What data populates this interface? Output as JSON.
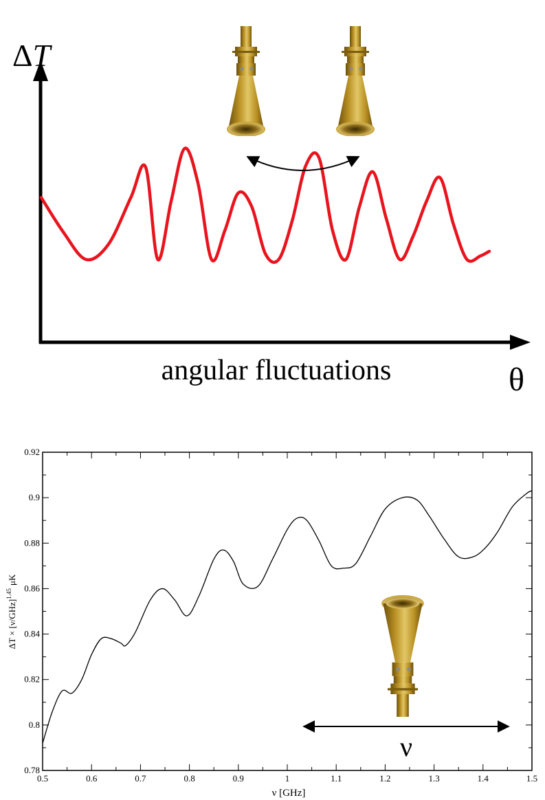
{
  "colors": {
    "curve_top": "#e8141e",
    "axis": "#000000",
    "brass_light": "#e2c766",
    "brass_mid": "#b88f22",
    "brass_dark": "#6a4f0c"
  },
  "icons": {
    "horn": "feed-horn-icon",
    "arrow": "double-arrow-icon"
  },
  "top_panel": {
    "y_label_delta": "Δ",
    "y_label_var": "T",
    "x_symbol": "θ",
    "caption": "angular fluctuations"
  },
  "chart_data": [
    {
      "type": "line",
      "title": "",
      "xlabel": "θ",
      "ylabel": "ΔT",
      "axes_ticks": false,
      "series": [
        {
          "color": "#e8141e",
          "x": [
            0.0,
            0.05,
            0.1,
            0.15,
            0.2,
            0.233,
            0.26,
            0.29,
            0.32,
            0.35,
            0.38,
            0.41,
            0.44,
            0.47,
            0.5,
            0.53,
            0.56,
            0.59,
            0.62,
            0.65,
            0.68,
            0.71,
            0.74,
            0.77,
            0.8,
            0.83,
            0.86,
            0.89,
            0.92,
            0.95,
            0.98,
            1.0
          ],
          "y": [
            0.58,
            0.28,
            0.05,
            0.18,
            0.58,
            0.84,
            0.05,
            0.55,
            1.0,
            0.7,
            0.05,
            0.3,
            0.62,
            0.5,
            0.1,
            0.05,
            0.38,
            0.85,
            0.92,
            0.3,
            0.05,
            0.5,
            0.8,
            0.4,
            0.05,
            0.25,
            0.55,
            0.75,
            0.35,
            0.05,
            0.08,
            0.12
          ]
        }
      ],
      "annotations": []
    },
    {
      "type": "line",
      "title": "",
      "xlabel": "ν  [GHz]",
      "ylabel_parts": {
        "main": "ΔT × [ν/GHz]",
        "exponent": "1.45",
        "unit": "μK"
      },
      "xlim": [
        0.5,
        1.5
      ],
      "ylim": [
        0.78,
        0.92
      ],
      "x_ticks": [
        "0.5",
        "0.6",
        "0.7",
        "0.8",
        "0.9",
        "1",
        "1.1",
        "1.2",
        "1.3",
        "1.4",
        "1.5"
      ],
      "y_ticks": [
        "0.78",
        "0.8",
        "0.82",
        "0.84",
        "0.86",
        "0.88",
        "0.9",
        "0.92"
      ],
      "annotations": [
        {
          "text": "ν"
        }
      ],
      "series": [
        {
          "color": "#000000",
          "x": [
            0.5,
            0.52,
            0.54,
            0.56,
            0.58,
            0.6,
            0.62,
            0.64,
            0.66,
            0.67,
            0.69,
            0.72,
            0.745,
            0.77,
            0.795,
            0.82,
            0.85,
            0.87,
            0.89,
            0.91,
            0.94,
            0.97,
            1.0,
            1.02,
            1.04,
            1.065,
            1.09,
            1.115,
            1.14,
            1.17,
            1.2,
            1.235,
            1.265,
            1.29,
            1.32,
            1.35,
            1.38,
            1.405,
            1.43,
            1.46,
            1.49,
            1.5
          ],
          "y": [
            0.792,
            0.806,
            0.815,
            0.814,
            0.82,
            0.831,
            0.838,
            0.838,
            0.836,
            0.835,
            0.841,
            0.855,
            0.86,
            0.855,
            0.848,
            0.857,
            0.873,
            0.877,
            0.872,
            0.862,
            0.861,
            0.873,
            0.886,
            0.891,
            0.89,
            0.881,
            0.87,
            0.869,
            0.871,
            0.883,
            0.895,
            0.9,
            0.899,
            0.892,
            0.882,
            0.874,
            0.874,
            0.878,
            0.885,
            0.896,
            0.902,
            0.903
          ]
        }
      ]
    }
  ]
}
